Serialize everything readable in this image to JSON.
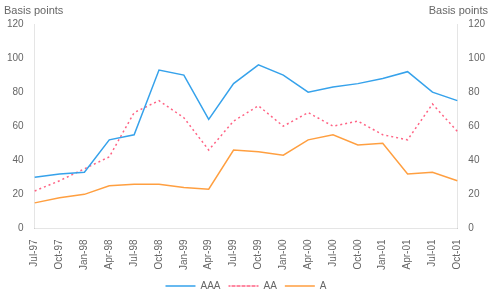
{
  "chart_data": {
    "type": "line",
    "ylabel": "Basis points",
    "y2label": "Basis points",
    "categories": [
      "Jul-97",
      "Oct-97",
      "Jan-98",
      "Apr-98",
      "Jul-98",
      "Oct-98",
      "Jan-99",
      "Apr-99",
      "Jul-99",
      "Oct-99",
      "Jan-00",
      "Apr-00",
      "Jul-00",
      "Oct-00",
      "Jan-01",
      "Apr-01",
      "Jul-01",
      "Oct-01"
    ],
    "series": [
      {
        "name": "AAA",
        "line_style": "solid",
        "values": [
          30,
          32,
          33,
          52,
          55,
          93,
          90,
          64,
          85,
          96,
          90,
          80,
          83,
          85,
          88,
          92,
          80,
          75
        ]
      },
      {
        "name": "AA",
        "line_style": "dotted",
        "values": [
          22,
          28,
          35,
          42,
          68,
          75,
          65,
          46,
          63,
          72,
          60,
          68,
          60,
          63,
          55,
          52,
          73,
          57
        ]
      },
      {
        "name": "A",
        "line_style": "solid",
        "values": [
          15,
          18,
          20,
          25,
          26,
          26,
          24,
          23,
          46,
          45,
          43,
          52,
          55,
          49,
          50,
          32,
          33,
          28
        ]
      }
    ],
    "ylim": [
      0,
      120
    ],
    "yticks": [
      0,
      20,
      40,
      60,
      80,
      100,
      120
    ],
    "y2lim": [
      0,
      120
    ],
    "y2ticks": [
      0,
      20,
      40,
      60,
      80,
      100,
      120
    ],
    "grid": false,
    "legend": "bottom"
  }
}
